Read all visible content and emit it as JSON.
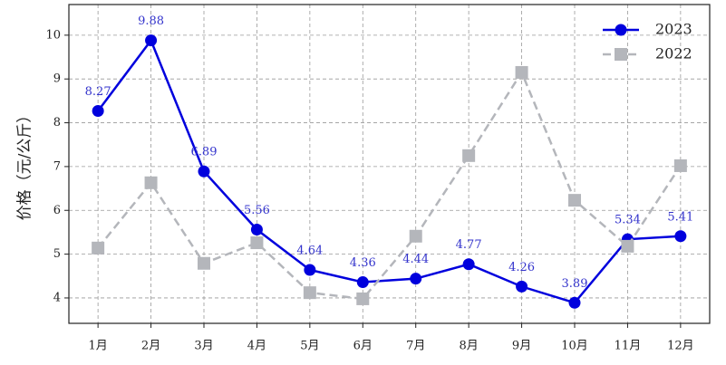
{
  "chart_data": {
    "type": "line",
    "y_label": "价格（元/公斤）",
    "categories": [
      "1月",
      "2月",
      "3月",
      "4月",
      "5月",
      "6月",
      "7月",
      "8月",
      "9月",
      "10月",
      "11月",
      "12月"
    ],
    "series": [
      {
        "name": "2023",
        "color": "#0000dd",
        "line_style": "solid",
        "marker": "circle",
        "show_value_labels": true,
        "values": [
          8.27,
          9.88,
          6.89,
          5.56,
          4.64,
          4.36,
          4.44,
          4.77,
          4.26,
          3.89,
          5.34,
          5.41
        ]
      },
      {
        "name": "2022",
        "color": "#b4b6bb",
        "line_style": "dashed",
        "marker": "square",
        "show_value_labels": false,
        "values": [
          5.14,
          6.63,
          4.79,
          5.26,
          4.12,
          3.98,
          5.41,
          7.25,
          9.15,
          6.23,
          5.18,
          7.02
        ]
      }
    ],
    "ylim": [
      3.42,
      10.7
    ],
    "yticks": [
      4,
      5,
      6,
      7,
      8,
      9,
      10
    ],
    "grid": true,
    "legend": "upper right"
  }
}
